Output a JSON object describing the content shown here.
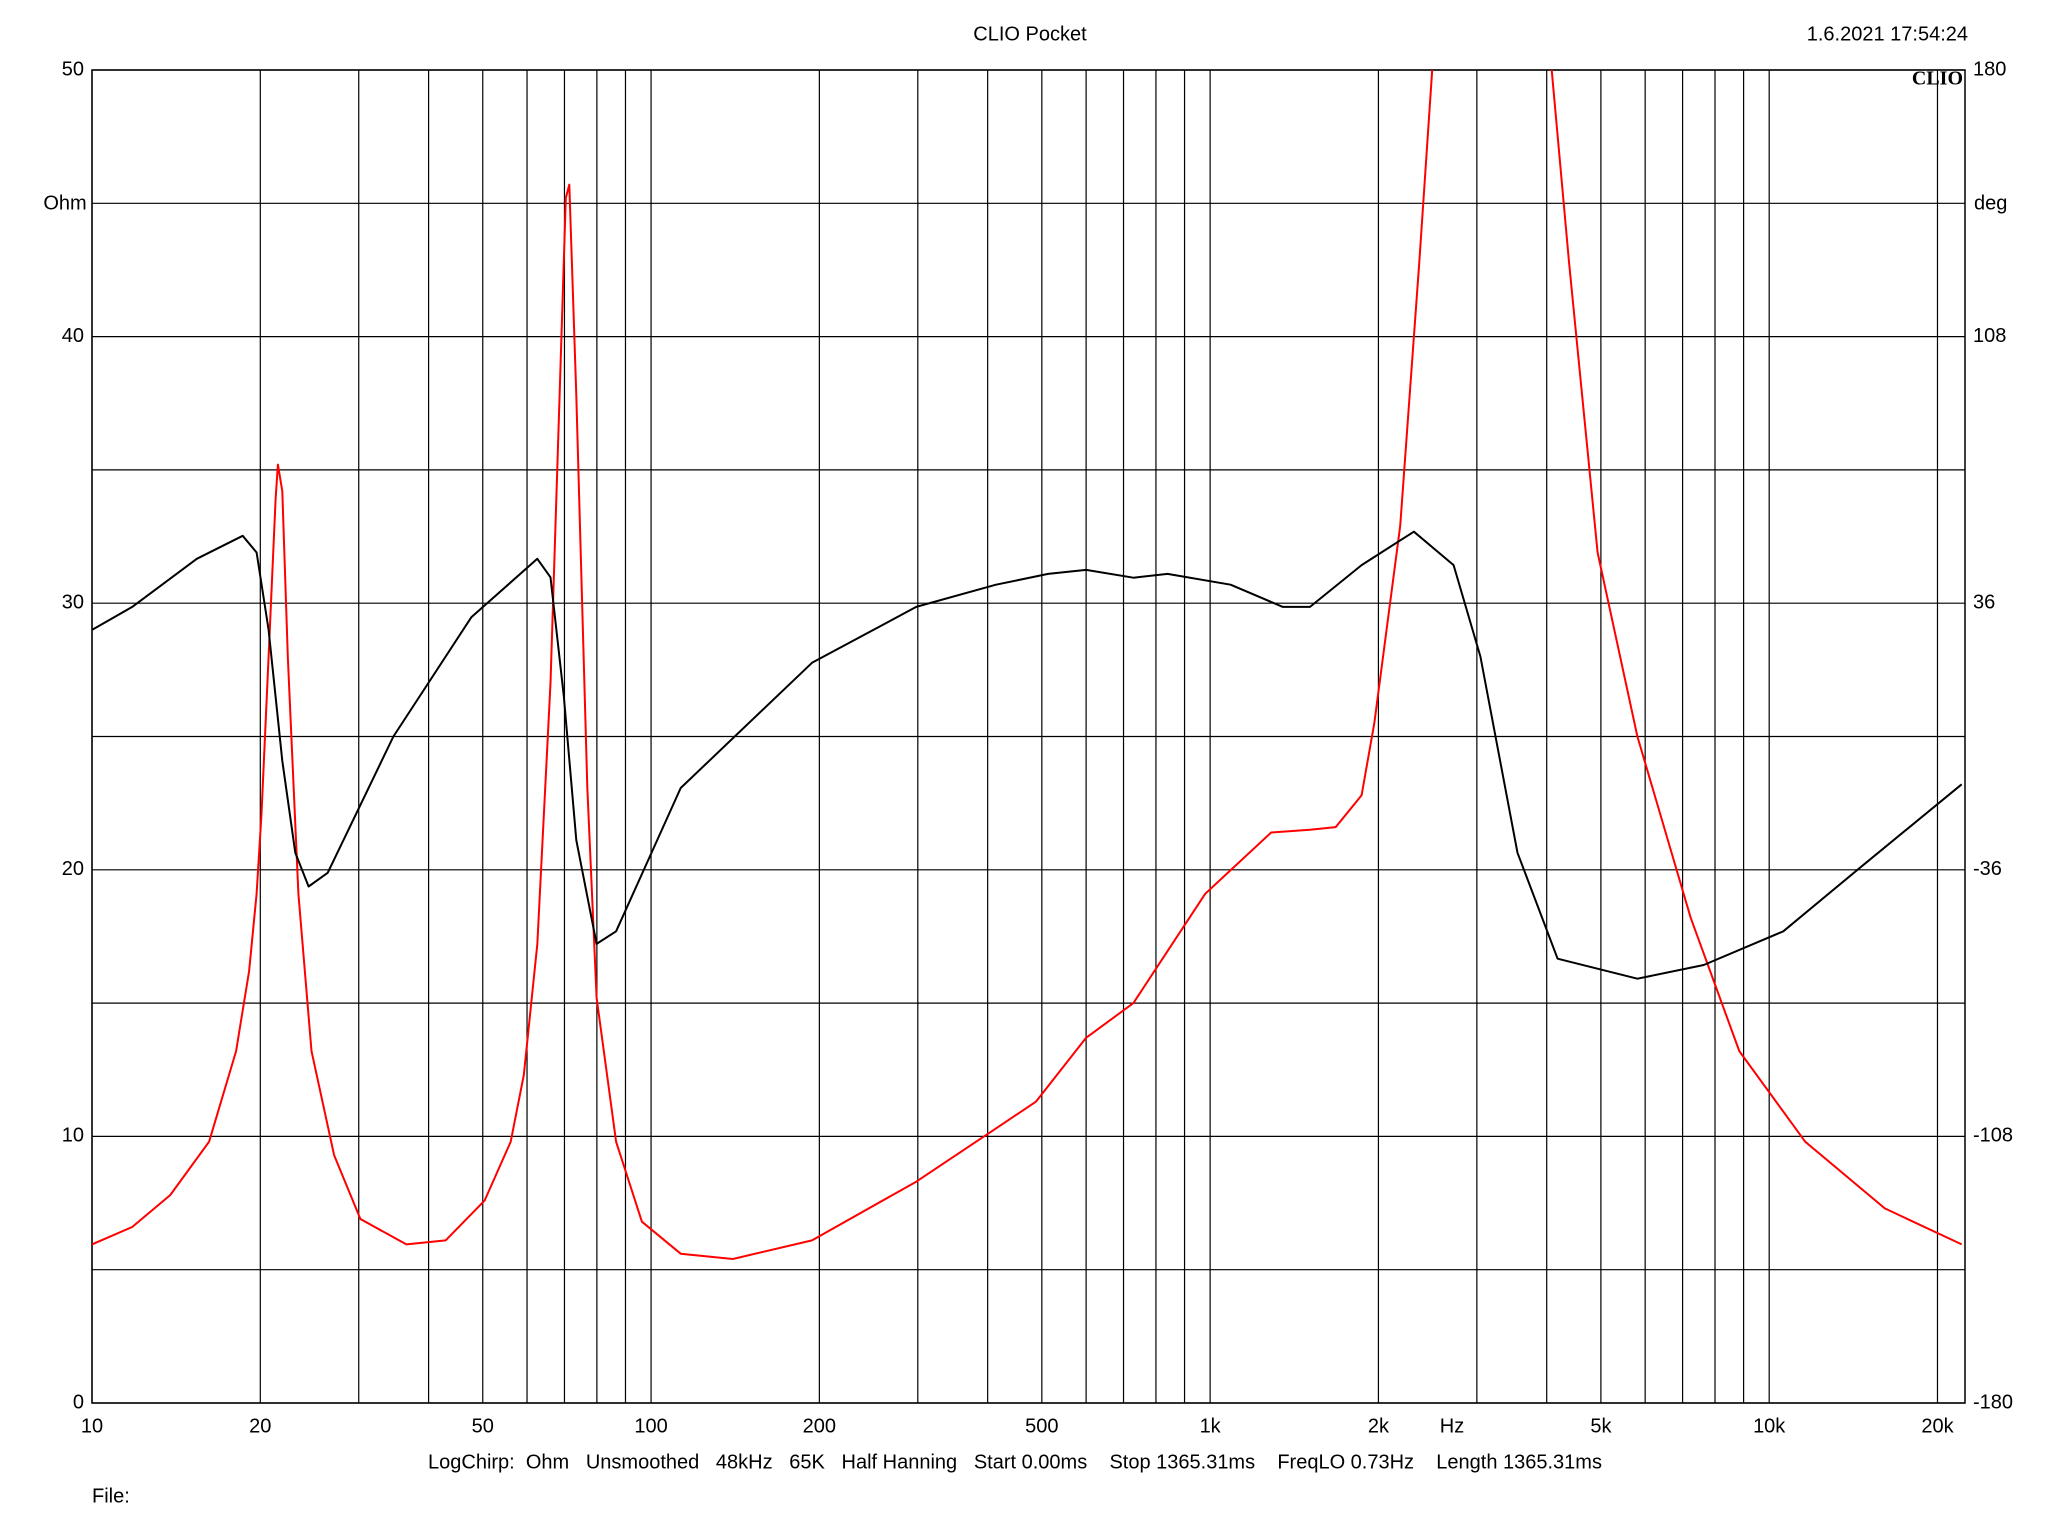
{
  "chart_data": {
    "type": "line",
    "title": "CLIO Pocket",
    "timestamp": "1.6.2021 17:54:24",
    "logo": "CLIO",
    "ylabel": "Ohm",
    "y2label": "deg",
    "xlabel": "Hz",
    "footer": "LogChirp:  Ohm   Unsmoothed   48kHz   65K   Half Hanning   Start 0.00ms    Stop 1365.31ms    FreqLO 0.73Hz    Length 1365.31ms",
    "file_label": "File:",
    "xlog": true,
    "xlim": [
      10,
      22400
    ],
    "ylim": [
      0,
      50
    ],
    "y2lim": [
      -180,
      180
    ],
    "xticks": [
      10,
      20,
      50,
      100,
      200,
      500,
      {
        "value": 1000,
        "label": "1k"
      },
      {
        "value": 2000,
        "label": "2k"
      },
      {
        "value": 5000,
        "label": "5k"
      },
      {
        "value": 10000,
        "label": "10k"
      },
      {
        "value": 20000,
        "label": "20k"
      }
    ],
    "yticks": [
      0,
      10,
      20,
      30,
      40,
      50
    ],
    "y2ticks": [
      -180,
      -108,
      -36,
      36,
      108,
      180
    ],
    "xgrid": [
      10,
      20,
      30,
      40,
      50,
      60,
      70,
      80,
      90,
      100,
      200,
      300,
      400,
      500,
      600,
      700,
      800,
      900,
      1000,
      2000,
      3000,
      4000,
      5000,
      6000,
      7000,
      8000,
      9000,
      10000,
      20000
    ],
    "ygrid": [
      0,
      5,
      10,
      15,
      20,
      25,
      30,
      35,
      40,
      45,
      50
    ],
    "grid": true,
    "series": [
      {
        "color": "#ff0000",
        "axis": "y",
        "x": [
          10,
          11.8,
          13.8,
          16.2,
          18.1,
          19.1,
          19.7,
          20.1,
          20.7,
          21.3,
          21.5,
          21.9,
          22.4,
          23.4,
          24.7,
          27.1,
          30.2,
          36.5,
          42.9,
          50.4,
          56.1,
          59.2,
          62.6,
          66.1,
          68.6,
          70.4,
          71.4,
          73.5,
          76.9,
          79.9,
          86.6,
          96.3,
          113,
          140,
          194,
          298,
          414,
          488,
          600,
          729,
          980,
          1286,
          1509,
          1677,
          1866,
          1966,
          2188,
          2367,
          2496,
          3200,
          4083,
          4384,
          4932,
          5811,
          7237,
          8843,
          11600,
          16100,
          22100
        ],
        "values": [
          5.95,
          6.6,
          7.8,
          9.8,
          13.2,
          16.2,
          19.1,
          22.1,
          28.0,
          33.9,
          35.2,
          34.2,
          28.0,
          19.1,
          13.2,
          9.3,
          6.9,
          5.95,
          6.1,
          7.6,
          9.8,
          12.3,
          17.2,
          27.0,
          37.8,
          45.2,
          45.7,
          37.8,
          23.1,
          15.2,
          9.8,
          6.8,
          5.6,
          5.4,
          6.1,
          8.3,
          10.3,
          11.3,
          13.7,
          15.0,
          19.1,
          21.4,
          21.5,
          21.6,
          22.8,
          25.5,
          32.9,
          42.8,
          50,
          null,
          50,
          42.8,
          31.9,
          25.0,
          18.2,
          13.2,
          9.8,
          7.3,
          5.95
        ]
      },
      {
        "color": "#000000",
        "axis": "y2",
        "x": [
          10,
          11.8,
          15.4,
          18.6,
          19.7,
          20.7,
          21.9,
          23.1,
          24.4,
          26.4,
          34.6,
          47.7,
          62.6,
          66.1,
          69.8,
          73.5,
          79.9,
          86.6,
          113,
          194,
          298,
          414,
          513,
          600,
          729,
          839,
          1088,
          1349,
          1509,
          1866,
          2315,
          2726,
          3044,
          3547,
          4183,
          5811,
          7637,
          10600,
          14600,
          22100
        ],
        "values": [
          28.8,
          35,
          48,
          54.2,
          49.7,
          28.8,
          -6.6,
          -31.4,
          -40.5,
          -36.8,
          0,
          32.2,
          48,
          43,
          10.9,
          -28,
          -56,
          -52.6,
          -13.9,
          19.9,
          35,
          41,
          43.9,
          45,
          42.9,
          43.9,
          41,
          35,
          35,
          46.3,
          55.3,
          46.3,
          21.6,
          -31.4,
          -60,
          -65.4,
          -61.7,
          -52.6,
          -35.2,
          -12.9
        ]
      }
    ]
  }
}
